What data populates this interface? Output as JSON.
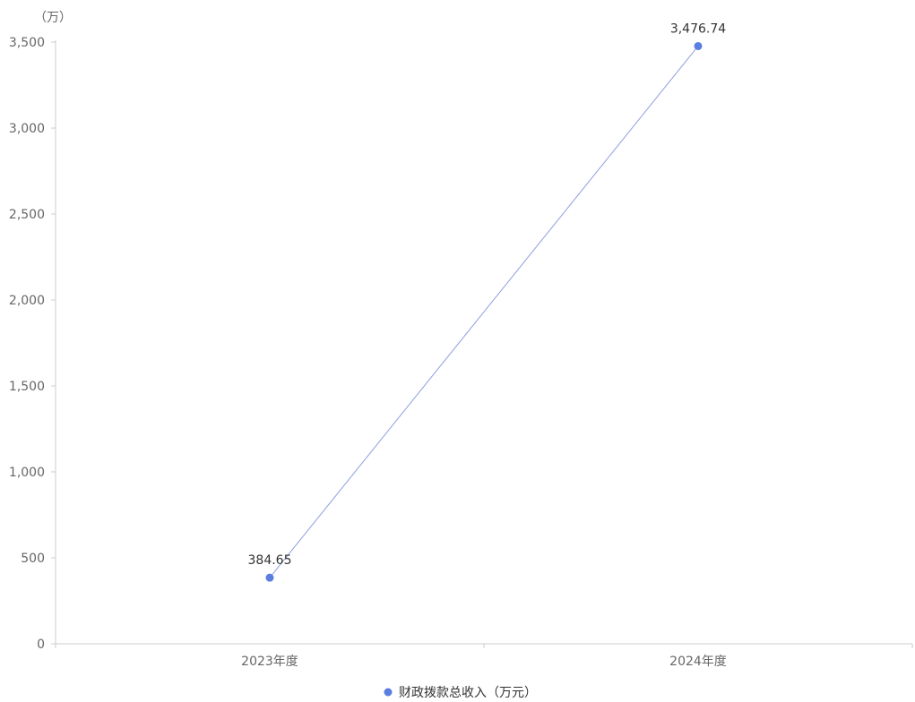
{
  "chart_data": {
    "type": "line",
    "title": "",
    "xlabel": "",
    "ylabel": "",
    "unit": "（万）",
    "categories": [
      "2023年度",
      "2024年度"
    ],
    "series": [
      {
        "name": "财政拨款总收入（万元）",
        "values": [
          384.65,
          3476.74
        ],
        "labels": [
          "384.65",
          "3,476.74"
        ]
      }
    ],
    "yticks": [
      0,
      500,
      1000,
      1500,
      2000,
      2500,
      3000,
      3500
    ],
    "ytick_labels": [
      "0",
      "500",
      "1,000",
      "1,500",
      "2,000",
      "2,500",
      "3,000",
      "3,500"
    ],
    "ylim": [
      0,
      3500
    ],
    "grid": false,
    "legend": "bottom-center",
    "colors": {
      "line": "#8fa0de",
      "marker": "#5b7fe0",
      "axis": "#cccccc",
      "text": "#666666"
    }
  }
}
